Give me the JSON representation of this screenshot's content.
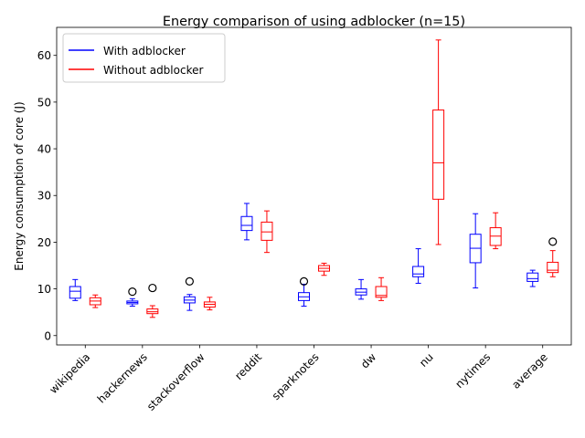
{
  "chart_data": {
    "type": "box",
    "title": "Energy comparison of using adblocker (n=15)",
    "xlabel": "",
    "ylabel": "Energy consumption of core (J)",
    "ylim": [
      -2,
      66
    ],
    "yticks": [
      0,
      10,
      20,
      30,
      40,
      50,
      60
    ],
    "categories": [
      "wikipedia",
      "hackernews",
      "stackoverflow",
      "reddit",
      "sparknotes",
      "dw",
      "nu",
      "nytimes",
      "average"
    ],
    "legend_position": "upper-left",
    "series": [
      {
        "name": "With adblocker",
        "color": "#0000ff",
        "boxes": [
          {
            "whislo": 7.5,
            "q1": 8.0,
            "med": 9.5,
            "q3": 10.5,
            "whishi": 12.0,
            "fliers": []
          },
          {
            "whislo": 6.3,
            "q1": 6.8,
            "med": 7.1,
            "q3": 7.4,
            "whishi": 7.9,
            "fliers": [
              9.4
            ]
          },
          {
            "whislo": 5.4,
            "q1": 7.0,
            "med": 7.6,
            "q3": 8.3,
            "whishi": 8.8,
            "fliers": [
              11.6
            ]
          },
          {
            "whislo": 20.5,
            "q1": 22.5,
            "med": 23.6,
            "q3": 25.5,
            "whishi": 28.3,
            "fliers": []
          },
          {
            "whislo": 6.3,
            "q1": 7.5,
            "med": 8.3,
            "q3": 9.2,
            "whishi": 11.0,
            "fliers": [
              11.6
            ]
          },
          {
            "whislo": 7.8,
            "q1": 8.7,
            "med": 9.3,
            "q3": 10.0,
            "whishi": 12.0,
            "fliers": []
          },
          {
            "whislo": 11.2,
            "q1": 12.6,
            "med": 13.2,
            "q3": 14.8,
            "whishi": 18.6,
            "fliers": []
          },
          {
            "whislo": 10.2,
            "q1": 15.6,
            "med": 18.7,
            "q3": 21.7,
            "whishi": 26.1,
            "fliers": []
          },
          {
            "whislo": 10.5,
            "q1": 11.6,
            "med": 12.2,
            "q3": 13.4,
            "whishi": 14.0,
            "fliers": []
          }
        ]
      },
      {
        "name": "Without adblocker",
        "color": "#ff0000",
        "boxes": [
          {
            "whislo": 6.0,
            "q1": 6.6,
            "med": 7.4,
            "q3": 8.1,
            "whishi": 8.7,
            "fliers": []
          },
          {
            "whislo": 3.9,
            "q1": 4.7,
            "med": 5.1,
            "q3": 5.7,
            "whishi": 6.4,
            "fliers": [
              10.2
            ]
          },
          {
            "whislo": 5.5,
            "q1": 6.1,
            "med": 6.7,
            "q3": 7.2,
            "whishi": 8.2,
            "fliers": []
          },
          {
            "whislo": 17.8,
            "q1": 20.4,
            "med": 22.2,
            "q3": 24.3,
            "whishi": 26.7,
            "fliers": []
          },
          {
            "whislo": 12.9,
            "q1": 13.8,
            "med": 14.4,
            "q3": 15.0,
            "whishi": 15.5,
            "fliers": []
          },
          {
            "whislo": 7.5,
            "q1": 8.2,
            "med": 8.6,
            "q3": 10.5,
            "whishi": 12.4,
            "fliers": []
          },
          {
            "whislo": 19.5,
            "q1": 29.2,
            "med": 37.0,
            "q3": 48.3,
            "whishi": 63.3,
            "fliers": []
          },
          {
            "whislo": 18.6,
            "q1": 19.3,
            "med": 21.3,
            "q3": 23.1,
            "whishi": 26.3,
            "fliers": []
          },
          {
            "whislo": 12.6,
            "q1": 13.5,
            "med": 14.0,
            "q3": 15.7,
            "whishi": 18.2,
            "fliers": [
              20.1
            ]
          }
        ]
      }
    ]
  }
}
